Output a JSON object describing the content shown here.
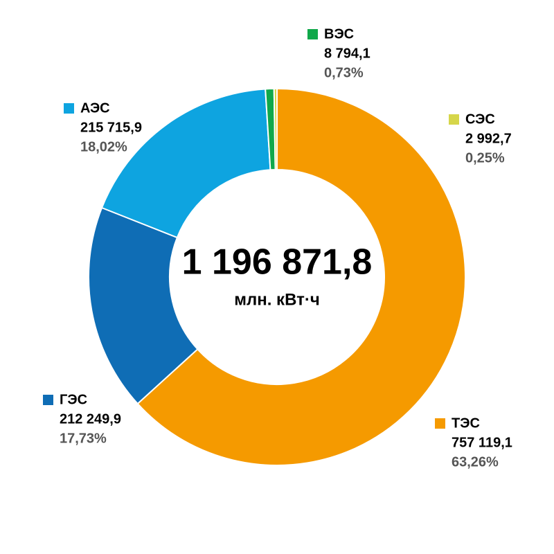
{
  "chart_data": {
    "type": "donut",
    "categories": [
      "ТЭС",
      "ГЭС",
      "АЭС",
      "ВЭС",
      "СЭС"
    ],
    "values": [
      757119.1,
      212249.9,
      215715.9,
      8794.1,
      2992.7
    ],
    "value_labels": [
      "757 119,1",
      "212 249,9",
      "215 715,9",
      "8 794,1",
      "2 992,7"
    ],
    "shares": [
      "63,26%",
      "17,73%",
      "18,02%",
      "0,73%",
      "0,25%"
    ],
    "colors": [
      "#f59a00",
      "#0f6db5",
      "#0ea4e0",
      "#10a84a",
      "#d6d64a"
    ],
    "center_value": "1 196 871,8",
    "center_unit": "млн. кВт·ч"
  }
}
